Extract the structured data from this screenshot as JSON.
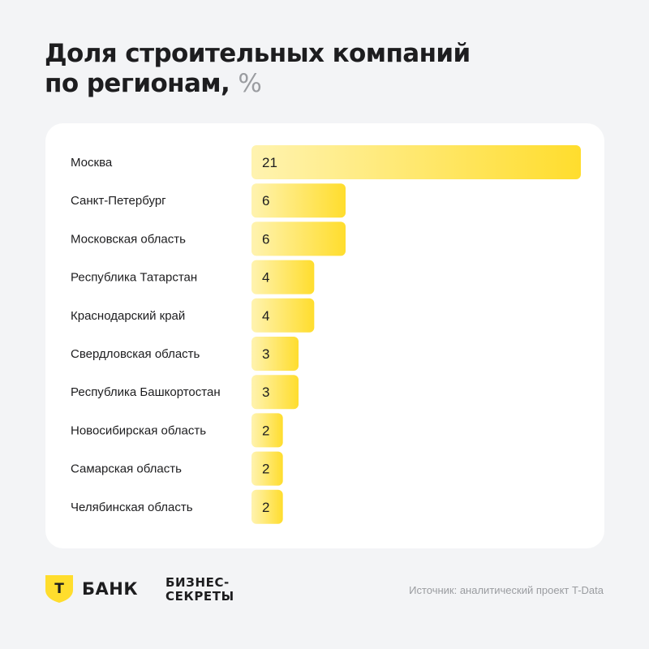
{
  "header": {
    "title_line1": "Доля строительных компаний",
    "title_line2": "по регионам,",
    "title_unit": "%"
  },
  "chart_data": {
    "type": "bar",
    "orientation": "horizontal",
    "categories": [
      "Москва",
      "Санкт-Петербург",
      "Московская область",
      "Республика Татарстан",
      "Краснодарский край",
      "Свердловская область",
      "Республика Башкортостан",
      "Новосибирская область",
      "Самарская область",
      "Челябинская область"
    ],
    "values": [
      21,
      6,
      6,
      4,
      4,
      3,
      3,
      2,
      2,
      2
    ],
    "bar_color_light": "#fff3b0",
    "bar_color_dark": "#ffdd2d",
    "grid": false
  },
  "footer": {
    "bank_name": "БАНК",
    "bank_logo_letter": "Т",
    "brand_color": "#ffdd2d",
    "partner_line1": "БИЗНЕС-",
    "partner_line2": "СЕКРЕТЫ",
    "source": "Источник: аналитический проект T-Data"
  }
}
